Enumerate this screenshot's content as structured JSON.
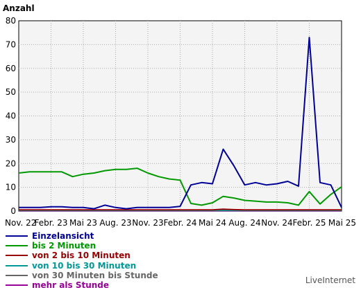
{
  "chart_data": {
    "type": "line",
    "ylabel": "Anzahl",
    "ylim": [
      0,
      80
    ],
    "yticks": [
      0,
      10,
      20,
      30,
      40,
      50,
      60,
      70,
      80
    ],
    "xticklabels": [
      "Nov. 22",
      "Febr. 23",
      "Mai 23",
      "Aug. 23",
      "Nov. 23",
      "Febr. 24",
      "Mai 24",
      "Aug. 24",
      "Nov. 24",
      "Febr. 25",
      "Mai 25"
    ],
    "grid": true,
    "legend_position": "bottom-left",
    "x": [
      "Nov. 22",
      "Dez. 22",
      "Jan. 23",
      "Febr. 23",
      "März 23",
      "Apr. 23",
      "Mai 23",
      "Juni 23",
      "Juli 23",
      "Aug. 23",
      "Sept. 23",
      "Okt. 23",
      "Nov. 23",
      "Dez. 23",
      "Jan. 24",
      "Febr. 24",
      "März 24",
      "Apr. 24",
      "Mai 24",
      "Juni 24",
      "Juli 24",
      "Aug. 24",
      "Sept. 24",
      "Okt. 24",
      "Nov. 24",
      "Dez. 24",
      "Jan. 25",
      "Febr. 25",
      "März 25",
      "Apr. 25",
      "Mai 25"
    ],
    "series": [
      {
        "name": "Einzelansicht",
        "color": "#000099",
        "values": [
          1.5,
          1.5,
          1.5,
          1.8,
          1.8,
          1.5,
          1.5,
          1.0,
          2.5,
          1.5,
          1.0,
          1.5,
          1.5,
          1.5,
          1.5,
          2.0,
          11,
          12,
          11.5,
          26,
          19,
          11,
          12,
          11,
          11.5,
          12.5,
          10.5,
          73,
          12,
          11,
          1.5
        ]
      },
      {
        "name": "bis 2 Minuten",
        "color": "#009900",
        "values": [
          16,
          16.5,
          16.5,
          16.5,
          16.5,
          14.5,
          15.5,
          16,
          17,
          17.5,
          17.5,
          18,
          16,
          14.5,
          13.5,
          13,
          3.2,
          2.5,
          3.5,
          6.2,
          5.5,
          4.5,
          4.2,
          3.8,
          3.8,
          3.5,
          2.5,
          8.2,
          3,
          7,
          10.2
        ]
      },
      {
        "name": "von 2 bis 10 Minuten",
        "color": "#990000",
        "values": [
          0.5,
          0.5,
          0.5,
          0.5,
          0.5,
          0.5,
          0.5,
          0.5,
          0.5,
          0.5,
          0.5,
          0.5,
          0.5,
          0.5,
          0.5,
          0.5,
          0.5,
          0.5,
          0.5,
          0.8,
          0.6,
          0.5,
          0.5,
          0.5,
          0.5,
          0.5,
          0.5,
          0.5,
          0.5,
          0.5,
          0.5
        ]
      },
      {
        "name": "von 10 bis 30 Minuten",
        "color": "#009999",
        "values": [
          0.3,
          0.3,
          0.3,
          0.3,
          0.3,
          0.3,
          0.3,
          0.3,
          0.3,
          0.3,
          0.3,
          0.3,
          0.3,
          0.3,
          0.3,
          0.3,
          0.3,
          0.3,
          0.3,
          0.3,
          0.3,
          0.3,
          0.3,
          0.3,
          0.3,
          0.3,
          0.3,
          0.3,
          0.3,
          0.3,
          0.3
        ]
      },
      {
        "name": "von 30 Minuten bis Stunde",
        "color": "#666666",
        "values": [
          0.2,
          0.2,
          0.2,
          0.2,
          0.2,
          0.2,
          0.2,
          0.2,
          0.2,
          0.2,
          0.2,
          0.2,
          0.2,
          0.2,
          0.2,
          0.2,
          0.2,
          0.2,
          0.2,
          0.2,
          0.2,
          0.2,
          0.2,
          0.2,
          0.2,
          0.2,
          0.2,
          0.2,
          0.2,
          0.2,
          0.2
        ]
      },
      {
        "name": "mehr als Stunde",
        "color": "#990099",
        "values": [
          0.1,
          0.1,
          0.1,
          0.1,
          0.1,
          0.1,
          0.1,
          0.1,
          0.1,
          0.1,
          0.1,
          0.1,
          0.1,
          0.1,
          0.1,
          0.1,
          0.1,
          0.1,
          0.1,
          0.1,
          0.1,
          0.1,
          0.1,
          0.1,
          0.1,
          0.1,
          0.1,
          0.1,
          0.1,
          0.1,
          0.1
        ]
      }
    ]
  },
  "footer": {
    "credit": "LiveInternet"
  }
}
